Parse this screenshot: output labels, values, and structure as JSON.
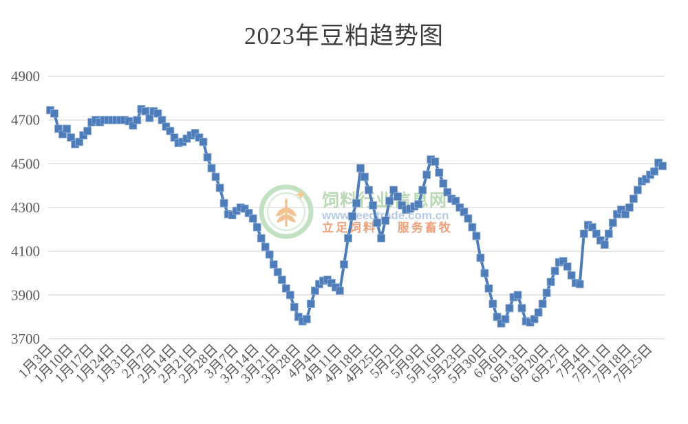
{
  "chart_data": {
    "type": "line",
    "title": "2023年豆粕趋势图",
    "xlabel": "",
    "ylabel": "",
    "ylim": [
      3700,
      4900
    ],
    "yticks": [
      3700,
      3900,
      4100,
      4300,
      4500,
      4700,
      4900
    ],
    "tick_every": 5,
    "grid": "horizontal",
    "legend": "none",
    "marker": "square",
    "line_color": "#4d7cb8",
    "marker_edge_color": "#8fb0d8",
    "grid_color": "#d9d9d9",
    "axis_label_color": "#595959",
    "x_tick_labels": [
      "1月3日",
      "1月10日",
      "1月17日",
      "1月24日",
      "1月31日",
      "2月7日",
      "2月14日",
      "2月21日",
      "2月28日",
      "3月7日",
      "3月14日",
      "3月21日",
      "3月28日",
      "4月4日",
      "4月11日",
      "4月18日",
      "4月25日",
      "5月2日",
      "5月9日",
      "5月16日",
      "5月23日",
      "5月30日",
      "6月6日",
      "6月13日",
      "6月20日",
      "6月27日",
      "7月4日",
      "7月11日",
      "7月18日",
      "7月25日"
    ],
    "x": [
      "1月3日",
      "1月4日",
      "1月5日",
      "1月6日",
      "1月9日",
      "1月10日",
      "1月11日",
      "1月12日",
      "1月13日",
      "1月16日",
      "1月17日",
      "1月18日",
      "1月19日",
      "1月20日",
      "1月23日",
      "1月24日",
      "1月25日",
      "1月26日",
      "1月27日",
      "1月30日",
      "1月31日",
      "2月1日",
      "2月2日",
      "2月3日",
      "2月6日",
      "2月7日",
      "2月8日",
      "2月9日",
      "2月10日",
      "2月13日",
      "2月14日",
      "2月15日",
      "2月16日",
      "2月17日",
      "2月20日",
      "2月21日",
      "2月22日",
      "2月23日",
      "2月24日",
      "2月27日",
      "2月28日",
      "3月1日",
      "3月2日",
      "3月3日",
      "3月6日",
      "3月7日",
      "3月8日",
      "3月9日",
      "3月10日",
      "3月13日",
      "3月14日",
      "3月15日",
      "3月16日",
      "3月17日",
      "3月20日",
      "3月21日",
      "3月22日",
      "3月23日",
      "3月24日",
      "3月27日",
      "3月28日",
      "3月29日",
      "3月30日",
      "3月31日",
      "4月3日",
      "4月4日",
      "4月5日",
      "4月6日",
      "4月7日",
      "4月10日",
      "4月11日",
      "4月12日",
      "4月13日",
      "4月14日",
      "4月17日",
      "4月18日",
      "4月19日",
      "4月20日",
      "4月21日",
      "4月24日",
      "4月25日",
      "4月26日",
      "4月27日",
      "4月28日",
      "5月1日",
      "5月2日",
      "5月3日",
      "5月4日",
      "5月5日",
      "5月8日",
      "5月9日",
      "5月10日",
      "5月11日",
      "5月12日",
      "5月15日",
      "5月16日",
      "5月17日",
      "5月18日",
      "5月19日",
      "5月22日",
      "5月23日",
      "5月24日",
      "5月25日",
      "5月26日",
      "5月29日",
      "5月30日",
      "5月31日",
      "6月1日",
      "6月2日",
      "6月5日",
      "6月6日",
      "6月7日",
      "6月8日",
      "6月9日",
      "6月12日",
      "6月13日",
      "6月14日",
      "6月15日",
      "6月16日",
      "6月19日",
      "6月20日",
      "6月21日",
      "6月22日",
      "6月23日",
      "6月26日",
      "6月27日",
      "6月28日",
      "6月29日",
      "6月30日",
      "7月3日",
      "7月4日",
      "7月5日",
      "7月6日",
      "7月7日",
      "7月10日",
      "7月11日",
      "7月12日",
      "7月13日",
      "7月14日",
      "7月17日",
      "7月18日",
      "7月19日",
      "7月20日",
      "7月21日",
      "7月24日",
      "7月25日",
      "7月26日",
      "7月27日",
      "7月28日"
    ],
    "values": [
      4745,
      4730,
      4660,
      4635,
      4660,
      4620,
      4590,
      4600,
      4630,
      4650,
      4690,
      4700,
      4690,
      4700,
      4700,
      4700,
      4700,
      4700,
      4700,
      4695,
      4675,
      4700,
      4750,
      4740,
      4710,
      4740,
      4730,
      4700,
      4670,
      4650,
      4620,
      4595,
      4600,
      4615,
      4630,
      4640,
      4620,
      4600,
      4530,
      4480,
      4440,
      4390,
      4320,
      4270,
      4265,
      4285,
      4300,
      4295,
      4275,
      4250,
      4210,
      4160,
      4120,
      4085,
      4040,
      4005,
      3970,
      3930,
      3900,
      3845,
      3800,
      3780,
      3790,
      3860,
      3920,
      3950,
      3965,
      3970,
      3955,
      3935,
      3920,
      4040,
      4160,
      4260,
      4320,
      4480,
      4440,
      4380,
      4310,
      4230,
      4160,
      4240,
      4330,
      4380,
      4350,
      4310,
      4290,
      4295,
      4305,
      4315,
      4380,
      4450,
      4520,
      4510,
      4460,
      4410,
      4370,
      4340,
      4330,
      4300,
      4280,
      4250,
      4210,
      4170,
      4070,
      4000,
      3930,
      3860,
      3800,
      3770,
      3790,
      3840,
      3890,
      3900,
      3840,
      3780,
      3775,
      3790,
      3820,
      3860,
      3910,
      3960,
      4010,
      4050,
      4055,
      4030,
      3990,
      3955,
      3950,
      4180,
      4220,
      4210,
      4180,
      4150,
      4130,
      4180,
      4230,
      4270,
      4290,
      4270,
      4300,
      4340,
      4380,
      4420,
      4430,
      4450,
      4465,
      4505,
      4490
    ]
  },
  "watermark": {
    "site_name": "饲料行业信息网",
    "site_url": "www.feedtrade.com.cn",
    "slogan": "立足饲料 服务畜牧",
    "ring_color": "#bfe0bf",
    "name_color": "#b6d7b0",
    "url_color": "#b1c8e6",
    "slogan_color": "#f09d74",
    "wheat_color": "#f2c08c"
  }
}
